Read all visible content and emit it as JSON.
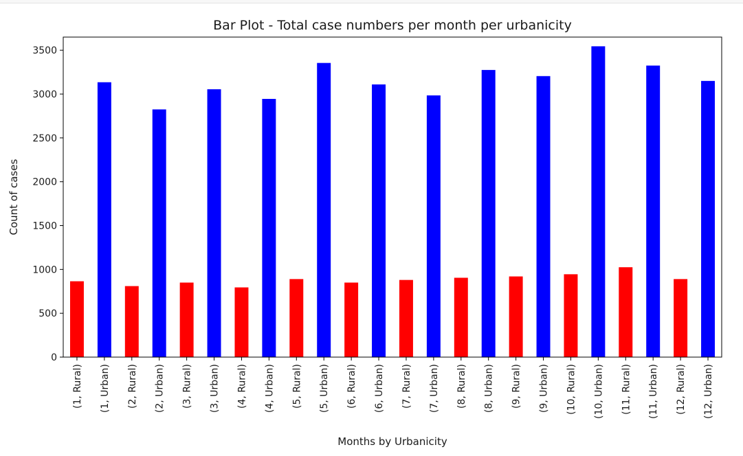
{
  "chart_data": {
    "type": "bar",
    "title": "Bar Plot - Total case numbers per month per urbanicity",
    "xlabel": "Months by Urbanicity",
    "ylabel": "Count of cases",
    "ylim": [
      0,
      3650
    ],
    "yticks": [
      0,
      500,
      1000,
      1500,
      2000,
      2500,
      3000,
      3500
    ],
    "grid": false,
    "legend": "none",
    "categories": [
      "(1, Rural)",
      "(1, Urban)",
      "(2, Rural)",
      "(2, Urban)",
      "(3, Rural)",
      "(3, Urban)",
      "(4, Rural)",
      "(4, Urban)",
      "(5, Rural)",
      "(5, Urban)",
      "(6, Rural)",
      "(6, Urban)",
      "(7, Rural)",
      "(7, Urban)",
      "(8, Rural)",
      "(8, Urban)",
      "(9, Rural)",
      "(9, Urban)",
      "(10, Rural)",
      "(10, Urban)",
      "(11, Rural)",
      "(11, Urban)",
      "(12, Rural)",
      "(12, Urban)"
    ],
    "values": [
      865,
      3135,
      810,
      2825,
      850,
      3055,
      795,
      2945,
      890,
      3355,
      850,
      3110,
      880,
      2985,
      905,
      3275,
      920,
      3205,
      945,
      3545,
      1025,
      3325,
      890,
      3150
    ],
    "bar_colors": {
      "Rural": "#ff0000",
      "Urban": "#0000ff"
    }
  }
}
